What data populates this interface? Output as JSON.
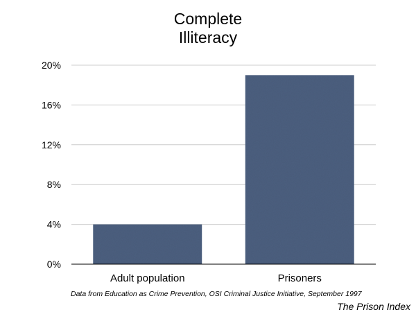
{
  "chart_data": {
    "type": "bar",
    "title_lines": [
      "Complete",
      "Illiteracy"
    ],
    "categories": [
      "Adult population",
      "Prisoners"
    ],
    "values": [
      4,
      19
    ],
    "ylim": [
      0,
      20
    ],
    "yticks": [
      0,
      4,
      8,
      12,
      16,
      20
    ],
    "ytick_labels": [
      "0%",
      "4%",
      "8%",
      "12%",
      "16%",
      "20%"
    ],
    "xlabel": "",
    "ylabel": "",
    "grid": true,
    "bar_color": "#4d6180",
    "grid_color": "#cccccc"
  },
  "source_note": "Data from Education as Crime Prevention, OSI Criminal Justice Initiative, September 1997",
  "brand": "The Prison Index"
}
